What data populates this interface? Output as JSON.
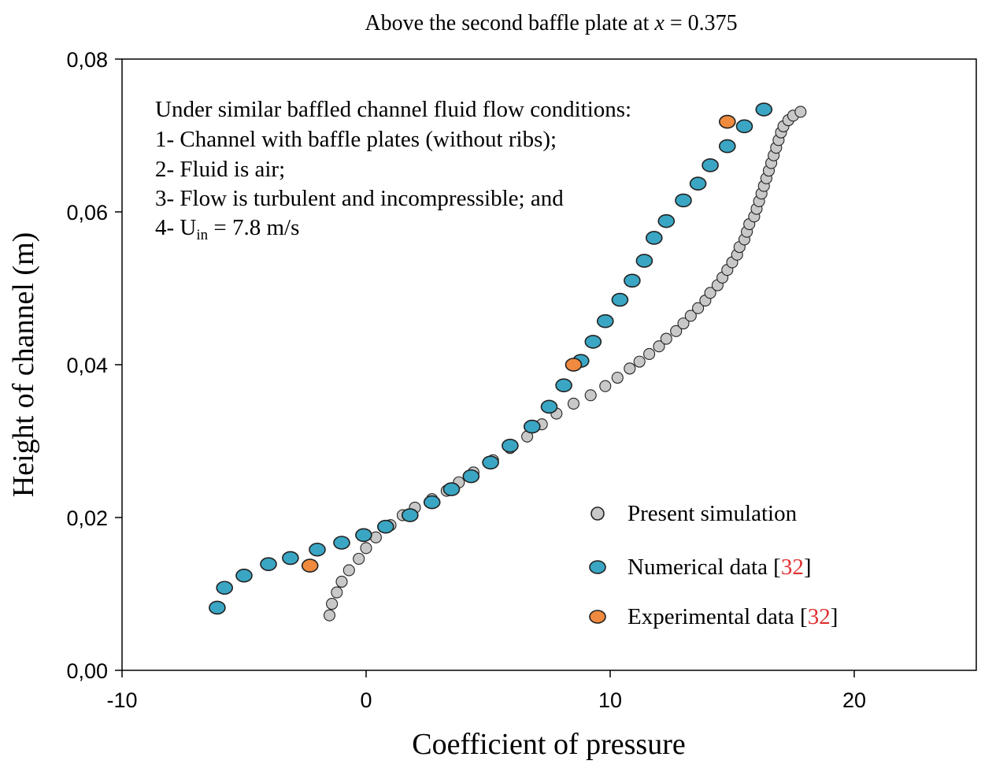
{
  "chart_data": {
    "type": "scatter",
    "title": "Above the second baffle plate at x = 0.375",
    "title_prefix": "Above the second baffle plate at ",
    "title_var": "x",
    "title_suffix": " = 0.375",
    "xlabel": "Coefficient of pressure",
    "ylabel": "Height of channel (m)",
    "xlim": [
      -10,
      25
    ],
    "ylim": [
      0,
      0.08
    ],
    "xticks": [
      -10,
      0,
      10,
      20
    ],
    "xtick_labels": [
      "-10",
      "0",
      "10",
      "20"
    ],
    "yticks": [
      0,
      0.02,
      0.04,
      0.06,
      0.08
    ],
    "ytick_labels": [
      "0,00",
      "0,02",
      "0,04",
      "0,06",
      "0,08"
    ],
    "grid": false,
    "legend_position": "bottom-right",
    "annotation": {
      "heading": "Under similar baffled channel fluid flow conditions:",
      "lines": [
        "1- Channel with baffle plates (without ribs);",
        "2- Fluid is air;",
        "3- Flow is turbulent and incompressible; and"
      ],
      "last_prefix": "4- U",
      "last_sub": "in",
      "last_suffix": " = 7.8 m/s"
    },
    "series": [
      {
        "name": "Present simulation",
        "ref": "",
        "color": "#c8c8c8",
        "points": [
          [
            -1.5,
            0.0072
          ],
          [
            -1.4,
            0.0087
          ],
          [
            -1.2,
            0.0102
          ],
          [
            -1.0,
            0.0116
          ],
          [
            -0.7,
            0.0131
          ],
          [
            -0.3,
            0.0146
          ],
          [
            0.0,
            0.016
          ],
          [
            0.4,
            0.0174
          ],
          [
            1.0,
            0.019
          ],
          [
            1.5,
            0.0203
          ],
          [
            2.0,
            0.0213
          ],
          [
            2.7,
            0.0224
          ],
          [
            3.3,
            0.0235
          ],
          [
            3.8,
            0.0246
          ],
          [
            4.4,
            0.0259
          ],
          [
            5.2,
            0.0275
          ],
          [
            5.9,
            0.0291
          ],
          [
            6.6,
            0.0306
          ],
          [
            7.2,
            0.0322
          ],
          [
            7.8,
            0.0336
          ],
          [
            8.5,
            0.0349
          ],
          [
            9.2,
            0.036
          ],
          [
            9.8,
            0.0372
          ],
          [
            10.3,
            0.0383
          ],
          [
            10.8,
            0.0395
          ],
          [
            11.2,
            0.0404
          ],
          [
            11.6,
            0.0414
          ],
          [
            12.0,
            0.0424
          ],
          [
            12.3,
            0.0434
          ],
          [
            12.7,
            0.0444
          ],
          [
            13.0,
            0.0454
          ],
          [
            13.3,
            0.0464
          ],
          [
            13.6,
            0.0474
          ],
          [
            13.9,
            0.0484
          ],
          [
            14.1,
            0.0494
          ],
          [
            14.4,
            0.0504
          ],
          [
            14.6,
            0.0514
          ],
          [
            14.8,
            0.0524
          ],
          [
            15.0,
            0.0534
          ],
          [
            15.2,
            0.0544
          ],
          [
            15.3,
            0.0554
          ],
          [
            15.5,
            0.0564
          ],
          [
            15.6,
            0.0574
          ],
          [
            15.7,
            0.0584
          ],
          [
            15.9,
            0.0594
          ],
          [
            16.0,
            0.0604
          ],
          [
            16.1,
            0.0614
          ],
          [
            16.2,
            0.0624
          ],
          [
            16.3,
            0.0634
          ],
          [
            16.4,
            0.0644
          ],
          [
            16.5,
            0.0654
          ],
          [
            16.6,
            0.0664
          ],
          [
            16.7,
            0.0674
          ],
          [
            16.8,
            0.0684
          ],
          [
            16.9,
            0.0694
          ],
          [
            17.0,
            0.0704
          ],
          [
            17.1,
            0.0712
          ],
          [
            17.3,
            0.072
          ],
          [
            17.5,
            0.0726
          ],
          [
            17.8,
            0.0731
          ]
        ]
      },
      {
        "name": "Numerical data [",
        "ref": "32",
        "color": "#3aa6c4",
        "points": [
          [
            -6.1,
            0.0082
          ],
          [
            -5.8,
            0.0108
          ],
          [
            -5.0,
            0.0124
          ],
          [
            -4.0,
            0.0139
          ],
          [
            -3.1,
            0.0147
          ],
          [
            -2.0,
            0.0158
          ],
          [
            -1.0,
            0.0167
          ],
          [
            -0.1,
            0.0177
          ],
          [
            0.8,
            0.0188
          ],
          [
            1.8,
            0.0203
          ],
          [
            2.7,
            0.022
          ],
          [
            3.5,
            0.0237
          ],
          [
            4.3,
            0.0254
          ],
          [
            5.1,
            0.0272
          ],
          [
            5.9,
            0.0294
          ],
          [
            6.8,
            0.0319
          ],
          [
            7.5,
            0.0345
          ],
          [
            8.1,
            0.0373
          ],
          [
            8.8,
            0.0405
          ],
          [
            9.3,
            0.043
          ],
          [
            9.8,
            0.0457
          ],
          [
            10.4,
            0.0485
          ],
          [
            10.9,
            0.051
          ],
          [
            11.4,
            0.0536
          ],
          [
            11.8,
            0.0566
          ],
          [
            12.3,
            0.0588
          ],
          [
            13.0,
            0.0615
          ],
          [
            13.6,
            0.0637
          ],
          [
            14.1,
            0.0661
          ],
          [
            14.8,
            0.0686
          ],
          [
            15.5,
            0.0712
          ],
          [
            16.3,
            0.0734
          ]
        ]
      },
      {
        "name": "Experimental data [",
        "ref": "32",
        "color": "#ef8a3e",
        "points": [
          [
            -2.3,
            0.0137
          ],
          [
            8.5,
            0.04
          ],
          [
            14.8,
            0.0718
          ]
        ]
      }
    ]
  }
}
